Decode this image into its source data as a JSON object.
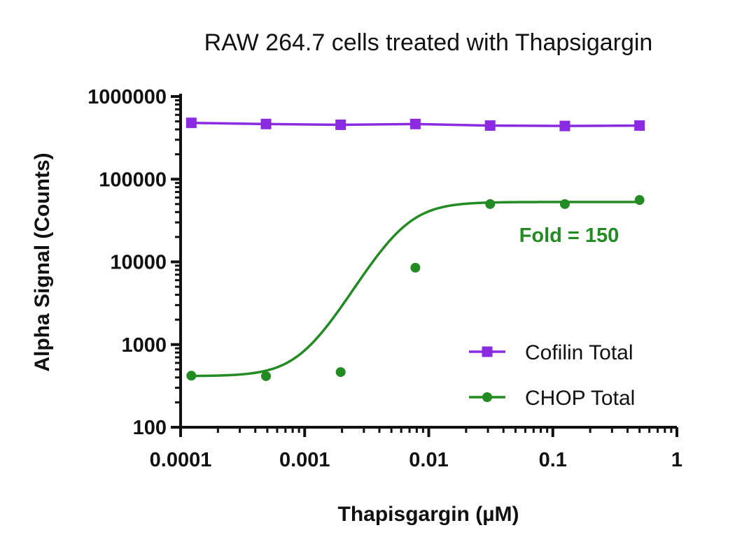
{
  "chart_data": {
    "type": "line",
    "title": "RAW 264.7 cells treated with Thapsigargin",
    "xlabel": "Thapisgargin (µM)",
    "ylabel": "Alpha Signal (Counts)",
    "x_scale": "log",
    "y_scale": "log",
    "xlim": [
      0.0001,
      1
    ],
    "ylim": [
      100,
      1000000
    ],
    "x_ticks": [
      "0.0001",
      "0.001",
      "0.01",
      "0.1",
      "1"
    ],
    "y_ticks": [
      "100",
      "1000",
      "10000",
      "100000",
      "1000000"
    ],
    "x": [
      0.000122,
      0.000488,
      0.00195,
      0.0078,
      0.03125,
      0.125,
      0.5
    ],
    "series": [
      {
        "name": "Cofilin Total",
        "marker": "square",
        "color": "#8a2be2",
        "values": [
          480000,
          465000,
          455000,
          465000,
          445000,
          440000,
          445000
        ],
        "curve": "connect"
      },
      {
        "name": "CHOP Total",
        "marker": "circle",
        "color": "#228b22",
        "values": [
          420,
          415,
          465,
          8500,
          50000,
          50000,
          56000
        ],
        "curve": "sigmoid-fit",
        "fit": {
          "bottom": 415,
          "top": 53000,
          "ec50": 0.0063,
          "hill": 2.6
        }
      }
    ],
    "annotations": [
      {
        "text": "Fold = 150",
        "color": "#228b22"
      }
    ],
    "legend": "bottom-right",
    "grid": false
  }
}
